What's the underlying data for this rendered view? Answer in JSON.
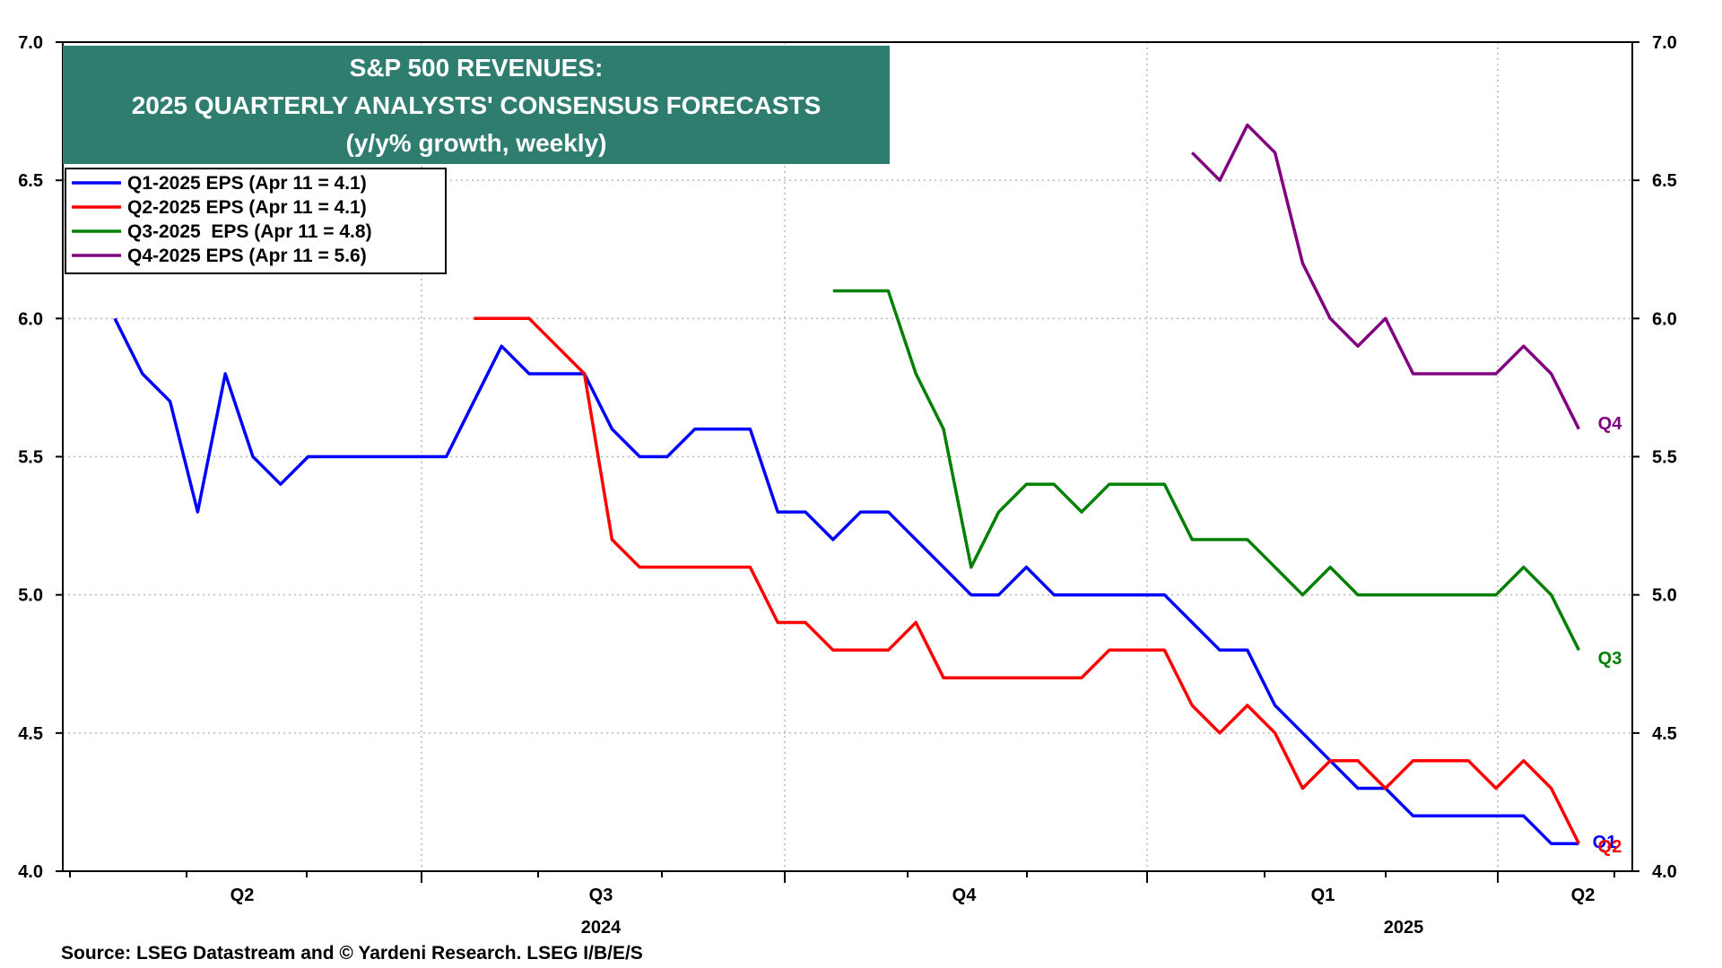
{
  "chart_data": {
    "type": "line",
    "title": [
      "S&P 500 REVENUES:",
      "2025 QUARTERLY ANALYSTS' CONSENSUS FORECASTS",
      "(y/y% growth, weekly)"
    ],
    "ylim": [
      4.0,
      7.0
    ],
    "y_ticks": [
      "4.0",
      "4.5",
      "5.0",
      "5.5",
      "6.0",
      "6.5",
      "7.0"
    ],
    "grid": true,
    "legend_position": "top-left",
    "x_quarter_labels": [
      "Q2",
      "Q3",
      "Q4",
      "Q1",
      "Q2"
    ],
    "x_year_labels": [
      "2024",
      "2025"
    ],
    "source": "Source: LSEG Datastream and © Yardeni Research. LSEG I/B/E/S",
    "series": [
      {
        "name": "Q1-2025 EPS (Apr 11 = 4.1)",
        "end_label": "Q1",
        "color": "#0000ff",
        "start_week": 0,
        "values": [
          6.0,
          5.8,
          5.7,
          5.3,
          5.8,
          5.5,
          5.4,
          5.5,
          5.5,
          5.5,
          5.5,
          5.5,
          5.5,
          5.7,
          5.9,
          5.8,
          5.8,
          5.8,
          5.6,
          5.5,
          5.5,
          5.6,
          5.6,
          5.6,
          5.3,
          5.3,
          5.2,
          5.3,
          5.3,
          5.2,
          5.1,
          5.0,
          5.0,
          5.1,
          5.0,
          5.0,
          5.0,
          5.0,
          5.0,
          4.9,
          4.8,
          4.8,
          4.6,
          4.5,
          4.4,
          4.3,
          4.3,
          4.2,
          4.2,
          4.2,
          4.2,
          4.2,
          4.1,
          4.1
        ]
      },
      {
        "name": "Q2-2025 EPS (Apr 11 = 4.1)",
        "end_label": "Q2",
        "color": "#ff0000",
        "start_week": 13,
        "values": [
          6.0,
          6.0,
          6.0,
          5.9,
          5.8,
          5.2,
          5.1,
          5.1,
          5.1,
          5.1,
          5.1,
          4.9,
          4.9,
          4.8,
          4.8,
          4.8,
          4.9,
          4.7,
          4.7,
          4.7,
          4.7,
          4.7,
          4.7,
          4.8,
          4.8,
          4.8,
          4.6,
          4.5,
          4.6,
          4.5,
          4.3,
          4.4,
          4.4,
          4.3,
          4.4,
          4.4,
          4.4,
          4.3,
          4.4,
          4.3,
          4.1
        ]
      },
      {
        "name": "Q3-2025  EPS (Apr 11 = 4.8)",
        "end_label": "Q3",
        "color": "#008000",
        "start_week": 26,
        "values": [
          6.1,
          6.1,
          6.1,
          5.8,
          5.6,
          5.1,
          5.3,
          5.4,
          5.4,
          5.3,
          5.4,
          5.4,
          5.4,
          5.2,
          5.2,
          5.2,
          5.1,
          5.0,
          5.1,
          5.0,
          5.0,
          5.0,
          5.0,
          5.0,
          5.0,
          5.1,
          5.0,
          4.8
        ]
      },
      {
        "name": "Q4-2025 EPS (Apr 11 = 5.6)",
        "end_label": "Q4",
        "color": "#800080",
        "start_week": 39,
        "values": [
          6.6,
          6.5,
          6.7,
          6.6,
          6.2,
          6.0,
          5.9,
          6.0,
          5.8,
          5.8,
          5.8,
          5.8,
          5.9,
          5.8,
          5.6
        ]
      }
    ]
  },
  "colors": {
    "title_box": "#2e7d6e",
    "grid": "#b8b8b8"
  }
}
